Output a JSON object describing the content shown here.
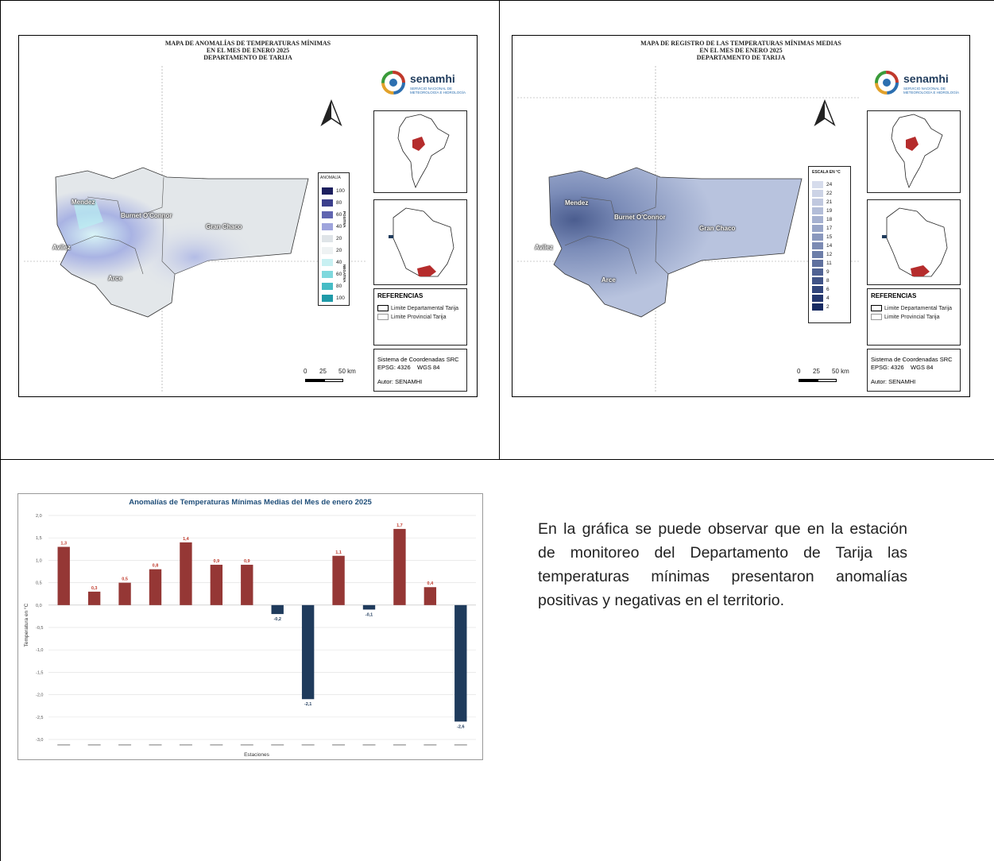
{
  "maps": [
    {
      "title_lines": [
        "MAPA DE ANOMALÍAS DE TEMPERATURAS MÍNIMAS",
        "EN EL MES DE ENERO 2025",
        "DEPARTAMENTO DE TARIJA"
      ],
      "logo": {
        "name": "senamhi",
        "subtitle": "SERVICIO NACIONAL DE METEOROLOGÍA E HIDROLOGÍA"
      },
      "provinces": [
        "Mendez",
        "Burnet O'Connor",
        "Gran Chaco",
        "Avilez",
        "Arce"
      ],
      "legend_title": "ANOMALÍA",
      "legend_groups": [
        "POSITIVA",
        "NEGATIVA"
      ],
      "legend": [
        {
          "value": "100",
          "color": "#1c1f5e"
        },
        {
          "value": "80",
          "color": "#3b3f8c"
        },
        {
          "value": "60",
          "color": "#6065b0"
        },
        {
          "value": "40",
          "color": "#9ea4dc"
        },
        {
          "value": "20",
          "color": "#dfe4e8"
        },
        {
          "value": "20",
          "color": "#eef2f3"
        },
        {
          "value": "40",
          "color": "#c8f0f2"
        },
        {
          "value": "60",
          "color": "#7ed8dd"
        },
        {
          "value": "80",
          "color": "#46bcc5"
        },
        {
          "value": "100",
          "color": "#1f9aa8"
        }
      ],
      "references_title": "REFERENCIAS",
      "references": [
        "Limite Departamental Tarija",
        "Limite Provincial Tarija"
      ],
      "crs": [
        "Sistema de Coordenadas SRC",
        "EPSG: 4326    WGS 84",
        "Autor: SENAMHI"
      ],
      "scale": [
        "0",
        "25",
        "50 km"
      ]
    },
    {
      "title_lines": [
        "MAPA DE REGISTRO DE LAS TEMPERATURAS MÍNIMAS MEDIAS",
        "EN EL MES DE ENERO 2025",
        "DEPARTAMENTO DE TARIJA"
      ],
      "logo": {
        "name": "senamhi",
        "subtitle": "SERVICIO NACIONAL DE METEOROLOGÍA E HIDROLOGÍA"
      },
      "provinces": [
        "Mendez",
        "Burnet O'Connor",
        "Gran Chaco",
        "Avilez",
        "Arce"
      ],
      "legend_title": "ESCALA EN °C",
      "legend": [
        {
          "value": "24",
          "color": "#d6dcec"
        },
        {
          "value": "22",
          "color": "#ccd3e6"
        },
        {
          "value": "21",
          "color": "#c0c8df"
        },
        {
          "value": "19",
          "color": "#b3bdd8"
        },
        {
          "value": "18",
          "color": "#a6b1d0"
        },
        {
          "value": "17",
          "color": "#98a5c7"
        },
        {
          "value": "15",
          "color": "#8a98bd"
        },
        {
          "value": "14",
          "color": "#7c8bb3"
        },
        {
          "value": "12",
          "color": "#6d7ea9"
        },
        {
          "value": "11",
          "color": "#5f709e"
        },
        {
          "value": "9",
          "color": "#506293"
        },
        {
          "value": "8",
          "color": "#415487"
        },
        {
          "value": "6",
          "color": "#33467b"
        },
        {
          "value": "4",
          "color": "#25386f"
        },
        {
          "value": "2",
          "color": "#172b62"
        }
      ],
      "references_title": "REFERENCIAS",
      "references": [
        "Limite Departamental Tarija",
        "Limite Provincial Tarija"
      ],
      "crs": [
        "Sistema de Coordenadas SRC",
        "EPSG: 4326    WGS 84",
        "Autor: SENAMHI"
      ],
      "scale": [
        "0",
        "25",
        "50 km"
      ]
    }
  ],
  "chart_data": {
    "type": "bar",
    "title": "Anomalías de Temperaturas Mínimas Medias del Mes de enero 2025",
    "xlabel": "Estaciones",
    "ylabel": "Temperatura en °C",
    "ylim": [
      -3.0,
      2.0
    ],
    "yticks": [
      "2,0",
      "1,5",
      "1,0",
      "0,5",
      "0,0",
      "-0,5",
      "-1,0",
      "-1,5",
      "-2,0",
      "-2,5",
      "-3,0"
    ],
    "values": [
      1.3,
      0.3,
      0.5,
      0.8,
      1.4,
      0.9,
      0.9,
      -0.2,
      -2.1,
      1.1,
      -0.1,
      1.7,
      0.4,
      -2.6
    ],
    "value_labels": [
      "1,3",
      "0,3",
      "0,5",
      "0,8",
      "1,4",
      "0,9",
      "0,9",
      "-0,2",
      "-2,1",
      "1,1",
      "-0,1",
      "1,7",
      "0,4",
      "-2,6"
    ],
    "colors": {
      "positive": "#953735",
      "negative": "#1f3b5c",
      "positive_label": "#c0392b",
      "negative_label": "#1f3b5c"
    },
    "grid": true
  },
  "text": "En la gráfica se puede observar que en la estación de monitoreo del Departamento de Tarija las temperaturas mínimas presentaron anomalías positivas y negativas en el territorio."
}
